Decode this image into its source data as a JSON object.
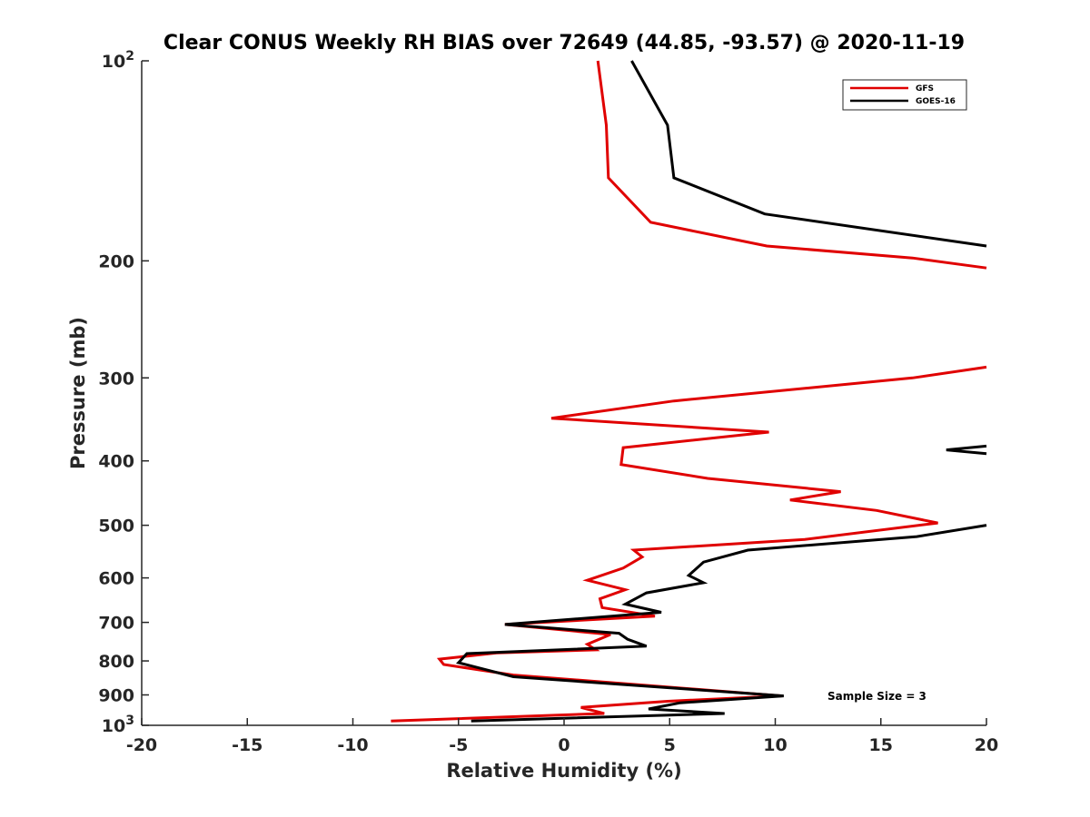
{
  "chart_data": {
    "type": "line",
    "title": "Clear CONUS Weekly RH BIAS over 72649 (44.85, -93.57) @ 2020-11-19",
    "xlabel": "Relative Humidity (%)",
    "ylabel": "Pressure (mb)",
    "xlim": [
      -20,
      20
    ],
    "ylim": [
      100,
      1000
    ],
    "y_scale": "log",
    "y_reversed": true,
    "x_ticks": [
      "-20",
      "-15",
      "-10",
      "-5",
      "0",
      "5",
      "10",
      "15",
      "20"
    ],
    "y_ticks": [
      {
        "value": 100,
        "base": "10",
        "exp": "2"
      },
      {
        "value": 200,
        "label": "200"
      },
      {
        "value": 300,
        "label": "300"
      },
      {
        "value": 400,
        "label": "400"
      },
      {
        "value": 500,
        "label": "500"
      },
      {
        "value": 600,
        "label": "600"
      },
      {
        "value": 700,
        "label": "700"
      },
      {
        "value": 800,
        "label": "800"
      },
      {
        "value": 900,
        "label": "900"
      },
      {
        "value": 1000,
        "base": "10",
        "exp": "3"
      }
    ],
    "grid": false,
    "legend_position": "top-right",
    "annotation": "Sample Size = 3",
    "series": [
      {
        "name": "GFS",
        "color": "#e00000",
        "segments": [
          [
            [
              1.6,
              100
            ],
            [
              2.0,
              125
            ],
            [
              2.1,
              150
            ],
            [
              4.1,
              175
            ],
            [
              9.6,
              190
            ],
            [
              16.5,
              198
            ],
            [
              20.0,
              205
            ]
          ],
          [
            [
              20.0,
              289
            ],
            [
              16.5,
              300
            ],
            [
              5.2,
              325
            ],
            [
              -0.6,
              345
            ],
            [
              9.7,
              362
            ],
            [
              2.8,
              382
            ],
            [
              2.7,
              405
            ],
            [
              6.8,
              425
            ],
            [
              13.1,
              445
            ],
            [
              10.7,
              458
            ],
            [
              14.8,
              475
            ],
            [
              17.7,
              496
            ],
            [
              11.4,
              525
            ],
            [
              3.3,
              545
            ],
            [
              3.7,
              558
            ],
            [
              2.8,
              580
            ],
            [
              1.1,
              605
            ],
            [
              2.9,
              625
            ],
            [
              1.7,
              645
            ],
            [
              1.8,
              665
            ],
            [
              4.3,
              685
            ],
            [
              -2.8,
              705
            ],
            [
              2.2,
              730
            ],
            [
              1.1,
              755
            ],
            [
              1.5,
              770
            ],
            [
              -3.2,
              778
            ],
            [
              -5.9,
              795
            ],
            [
              -5.7,
              810
            ],
            [
              -2.4,
              840
            ],
            [
              10.3,
              903
            ],
            [
              4.9,
              920
            ],
            [
              0.8,
              940
            ],
            [
              1.9,
              960
            ],
            [
              -8.2,
              985
            ]
          ]
        ]
      },
      {
        "name": "GOES-16",
        "color": "#000000",
        "segments": [
          [
            [
              3.2,
              100
            ],
            [
              4.9,
              125
            ],
            [
              5.2,
              150
            ],
            [
              9.5,
              170
            ],
            [
              20.0,
              190
            ]
          ],
          [
            [
              20.0,
              380
            ],
            [
              18.1,
              385
            ],
            [
              20.0,
              390
            ]
          ],
          [
            [
              20.0,
              500
            ],
            [
              16.7,
              520
            ],
            [
              8.7,
              545
            ],
            [
              6.6,
              568
            ],
            [
              5.9,
              595
            ],
            [
              6.6,
              610
            ],
            [
              3.9,
              632
            ],
            [
              2.9,
              657
            ],
            [
              4.6,
              676
            ],
            [
              -2.8,
              705
            ],
            [
              2.6,
              727
            ],
            [
              3.0,
              742
            ],
            [
              3.9,
              760
            ],
            [
              -4.6,
              780
            ],
            [
              -5.0,
              805
            ],
            [
              -4.0,
              820
            ],
            [
              -2.4,
              845
            ],
            [
              10.4,
              903
            ],
            [
              5.5,
              925
            ],
            [
              4.0,
              945
            ],
            [
              7.6,
              960
            ],
            [
              -4.4,
              985
            ]
          ]
        ]
      }
    ]
  }
}
